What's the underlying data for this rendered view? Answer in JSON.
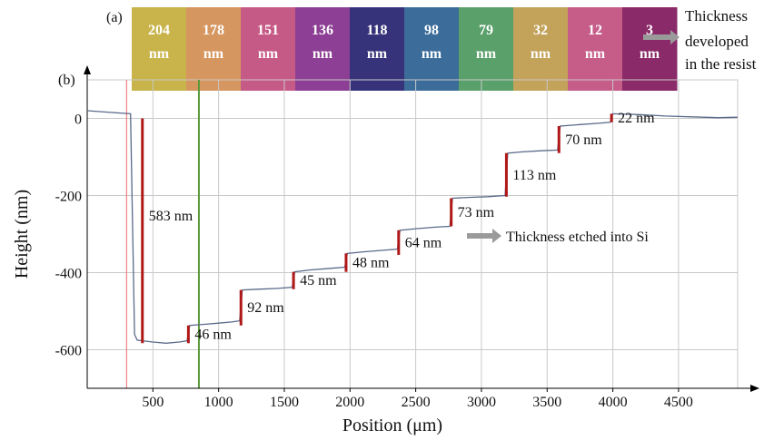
{
  "panel_labels": {
    "a": "(a)",
    "b": "(b)"
  },
  "strip": {
    "swatches": [
      {
        "value": "204",
        "unit": "nm",
        "color": "#c8b44a"
      },
      {
        "value": "178",
        "unit": "nm",
        "color": "#d69660"
      },
      {
        "value": "151",
        "unit": "nm",
        "color": "#c65a86"
      },
      {
        "value": "136",
        "unit": "nm",
        "color": "#8c3f94"
      },
      {
        "value": "118",
        "unit": "nm",
        "color": "#36337a"
      },
      {
        "value": "98",
        "unit": "nm",
        "color": "#3c6c9a"
      },
      {
        "value": "79",
        "unit": "nm",
        "color": "#5aa06a"
      },
      {
        "value": "32",
        "unit": "nm",
        "color": "#c3a25a"
      },
      {
        "value": "12",
        "unit": "nm",
        "color": "#c65c88"
      },
      {
        "value": "3",
        "unit": "nm",
        "color": "#8a2a68"
      }
    ],
    "annotation": {
      "line1": "Thickness",
      "line2": "developed",
      "line3": "in the resist"
    }
  },
  "colors": {
    "trace": "#5a6a8a",
    "marker": "#b01818",
    "grid": "#c9c9c9",
    "red_vline": "#f08080",
    "green_vline": "#5a9a3a",
    "arrow": "#9a9a9a"
  },
  "chart_data": {
    "type": "line",
    "xlabel": "Position (μm)",
    "ylabel": "Height  (nm)",
    "xlim": [
      0,
      4950
    ],
    "ylim": [
      -700,
      100
    ],
    "xticks": [
      500,
      1000,
      1500,
      2000,
      2500,
      3000,
      3500,
      4000,
      4500
    ],
    "yticks": [
      0,
      -200,
      -400,
      -600
    ],
    "x": [
      0,
      200,
      330,
      360,
      380,
      500,
      600,
      700,
      760,
      780,
      900,
      1000,
      1100,
      1160,
      1180,
      1300,
      1450,
      1560,
      1580,
      1700,
      1850,
      1960,
      1980,
      2100,
      2250,
      2360,
      2380,
      2500,
      2650,
      2760,
      2780,
      2900,
      3050,
      3180,
      3200,
      3300,
      3450,
      3580,
      3600,
      3750,
      3880,
      3980,
      4000,
      4200,
      4400,
      4600,
      4800,
      4950
    ],
    "y": [
      20,
      15,
      12,
      -560,
      -575,
      -580,
      -583,
      -580,
      -577,
      -537,
      -534,
      -531,
      -528,
      -525,
      -445,
      -443,
      -441,
      -438,
      -398,
      -393,
      -389,
      -386,
      -350,
      -346,
      -342,
      -339,
      -290,
      -286,
      -282,
      -280,
      -207,
      -205,
      -203,
      -200,
      -90,
      -87,
      -84,
      -82,
      -20,
      -16,
      -13,
      -10,
      12,
      10,
      6,
      4,
      2,
      3
    ],
    "vertical_lines": [
      {
        "x": 300,
        "color": "red"
      },
      {
        "x": 850,
        "color": "green"
      }
    ],
    "annotations": [
      {
        "label": "583 nm",
        "x": 420,
        "y_top": 0,
        "y_bottom": -583
      },
      {
        "label": "46 nm",
        "x": 770,
        "y_top": -537,
        "y_bottom": -583
      },
      {
        "label": "92 nm",
        "x": 1170,
        "y_top": -445,
        "y_bottom": -537
      },
      {
        "label": "45 nm",
        "x": 1570,
        "y_top": -398,
        "y_bottom": -443
      },
      {
        "label": "48 nm",
        "x": 1970,
        "y_top": -350,
        "y_bottom": -398
      },
      {
        "label": "64 nm",
        "x": 2370,
        "y_top": -290,
        "y_bottom": -354
      },
      {
        "label": "73 nm",
        "x": 2770,
        "y_top": -207,
        "y_bottom": -280
      },
      {
        "label": "113 nm",
        "x": 3190,
        "y_top": -90,
        "y_bottom": -203
      },
      {
        "label": "70 nm",
        "x": 3590,
        "y_top": -20,
        "y_bottom": -90
      },
      {
        "label": "22 nm",
        "x": 3990,
        "y_top": 12,
        "y_bottom": -10
      }
    ],
    "callout": "Thickness etched into Si"
  }
}
